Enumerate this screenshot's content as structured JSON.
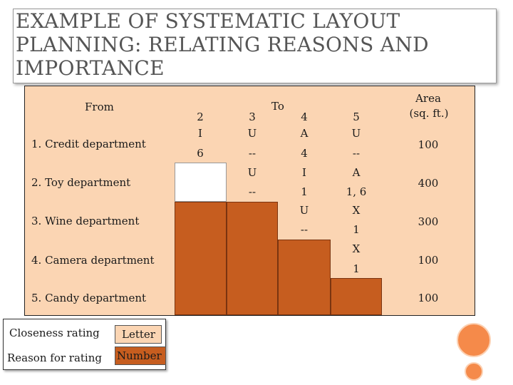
{
  "title": {
    "line1": "EXAMPLE OF SYSTEMATIC LAYOUT",
    "line2": "PLANNING: RELATING REASONS AND",
    "line3": "IMPORTANCE"
  },
  "headers": {
    "from": "From",
    "to": "To",
    "area_line1": "Area",
    "area_line2": "(sq. ft.)"
  },
  "columns": [
    "2",
    "3",
    "4",
    "5"
  ],
  "departments": [
    {
      "label": "1. Credit department",
      "area": "100"
    },
    {
      "label": "2. Toy department",
      "area": "400"
    },
    {
      "label": "3. Wine department",
      "area": "300"
    },
    {
      "label": "4. Camera department",
      "area": "100"
    },
    {
      "label": "5. Candy department",
      "area": "100"
    }
  ],
  "pairs": {
    "r1": {
      "c2_letter": "I",
      "c2_num": "6",
      "c3_letter": "U",
      "c3_num": "--",
      "c4_letter": "A",
      "c4_num": "4",
      "c5_letter": "U",
      "c5_num": "--"
    },
    "r2": {
      "c3_letter": "U",
      "c3_num": "--",
      "c4_letter": "I",
      "c4_num": "1",
      "c5_letter": "A",
      "c5_num": "1, 6"
    },
    "r3": {
      "c4_letter": "U",
      "c4_num": "--",
      "c5_letter": "X",
      "c5_num": "1"
    },
    "r4": {
      "c5_letter": "X",
      "c5_num": "1"
    }
  },
  "legend": {
    "closeness_label": "Closeness rating",
    "closeness_value": "Letter",
    "reason_label": "Reason for rating",
    "reason_value": "Number"
  },
  "colors": {
    "peach": "#fbd5b3",
    "rust": "#c65d1f",
    "accent_circle": "#f58a4a"
  }
}
